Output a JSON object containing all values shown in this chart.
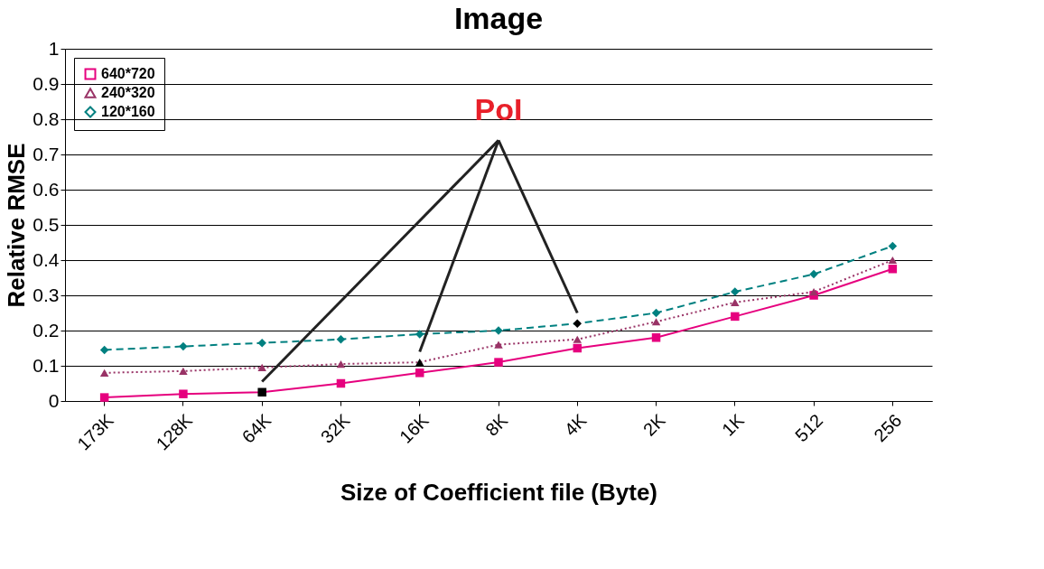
{
  "chart_data": {
    "type": "line",
    "title": "Image",
    "xlabel": "Size of Coefficient file (Byte)",
    "ylabel": "Relative RMSE",
    "categories": [
      "173K",
      "128K",
      "64K",
      "32K",
      "16K",
      "8K",
      "4K",
      "2K",
      "1K",
      "512",
      "256"
    ],
    "ylim": [
      0,
      1
    ],
    "yticks": [
      0,
      0.1,
      0.2,
      0.3,
      0.4,
      0.5,
      0.6,
      0.7,
      0.8,
      0.9,
      1
    ],
    "grid": "y",
    "legend": "top left",
    "series": [
      {
        "name": "640*720",
        "color": "#e6007e",
        "line_style": "solid",
        "marker": "square",
        "values": [
          0.01,
          0.02,
          0.025,
          0.05,
          0.08,
          0.11,
          0.15,
          0.18,
          0.24,
          0.3,
          0.375
        ],
        "colors": [
          "#e6007e",
          "#e6007e",
          "#000000",
          "#e6007e",
          "#e6007e",
          "#e6007e",
          "#e6007e",
          "#e6007e",
          "#e6007e",
          "#e6007e",
          "#e6007e"
        ]
      },
      {
        "name": "240*320",
        "color": "#993366",
        "line_style": "dotted",
        "marker": "triangle",
        "values": [
          0.08,
          0.085,
          0.095,
          0.105,
          0.11,
          0.16,
          0.175,
          0.225,
          0.28,
          0.31,
          0.4
        ],
        "colors": [
          "#993366",
          "#993366",
          "#993366",
          "#993366",
          "#000000",
          "#993366",
          "#993366",
          "#993366",
          "#993366",
          "#993366",
          "#993366"
        ]
      },
      {
        "name": "120*160",
        "color": "#008080",
        "line_style": "dashed",
        "marker": "diamond",
        "values": [
          0.145,
          0.155,
          0.165,
          0.175,
          0.19,
          0.2,
          0.22,
          0.25,
          0.31,
          0.36,
          0.44
        ],
        "colors": [
          "#008080",
          "#008080",
          "#008080",
          "#008080",
          "#008080",
          "#008080",
          "#000000",
          "#008080",
          "#008080",
          "#008080",
          "#008080"
        ]
      }
    ],
    "annotations": [
      "PoI"
    ]
  }
}
